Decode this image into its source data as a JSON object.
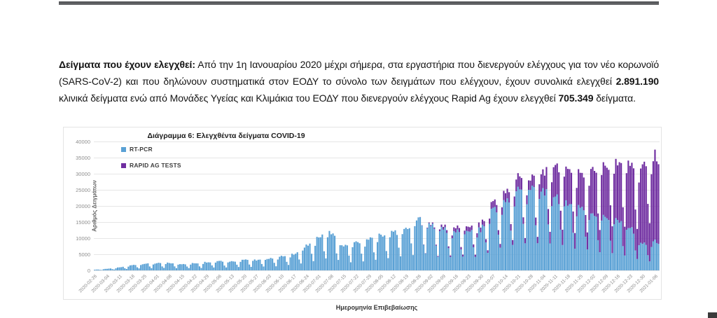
{
  "paragraph": {
    "s1": "Δείγματα που έχουν ελεγχθεί:",
    "s2": " Από την 1η Ιανουαρίου 2020 μέχρι σήμερα, στα εργαστήρια που διενεργούν ελέγχους για τον νέο κορωνοϊό (SARS-CoV-2) και που δηλώνουν συστηματικά στον ΕΟΔΥ το σύνολο των δειγμάτων που ελέγχουν, έχουν συνολικά ελεγχθεί ",
    "s3": "2.891.190",
    "s4": " κλινικά δείγματα ενώ από Μονάδες Υγείας και Κλιμάκια του ΕΟΔΥ που διενεργούν ελέγχους Rapid Ag έχουν ελεγχθεί ",
    "s5": "705.349",
    "s6": " δείγματα."
  },
  "chart_data": {
    "type": "bar",
    "stacked": true,
    "title": "Διάγραμμα 6: Ελεγχθέντα δείγματα COVID-19",
    "xlabel": "Ημερομηνία Επιβεβαίωσης",
    "ylabel": "Αριθμός Δειγμάτων",
    "ylim": [
      0,
      40000
    ],
    "ytick_step": 5000,
    "grid": "horizontal",
    "legend_position": "top-left-inside",
    "bar_resolution": "daily bars with weekend dips; values below are weekly estimates at each tick label",
    "categories": [
      "2020-02-26",
      "2020-03-04",
      "2020-03-11",
      "2020-03-18",
      "2020-03-25",
      "2020-04-01",
      "2020-04-08",
      "2020-04-15",
      "2020-04-22",
      "2020-04-29",
      "2020-05-06",
      "2020-05-13",
      "2020-05-20",
      "2020-05-27",
      "2020-06-03",
      "2020-06-10",
      "2020-06-17",
      "2020-06-24",
      "2020-07-01",
      "2020-07-08",
      "2020-07-15",
      "2020-07-22",
      "2020-07-29",
      "2020-08-05",
      "2020-08-12",
      "2020-08-19",
      "2020-08-26",
      "2020-09-02",
      "2020-09-09",
      "2020-09-16",
      "2020-09-23",
      "2020-09-30",
      "2020-10-07",
      "2020-10-14",
      "2020-10-21",
      "2020-10-28",
      "2020-11-04",
      "2020-11-11",
      "2020-11-18",
      "2020-11-25",
      "2020-12-02",
      "2020-12-09",
      "2020-12-16",
      "2020-12-23",
      "2020-12-30",
      "2021-01-06"
    ],
    "series": [
      {
        "name": "RT-PCR",
        "color": "#5aa1d5",
        "values": [
          200,
          500,
          900,
          1600,
          2100,
          2200,
          2300,
          2000,
          2200,
          2600,
          3000,
          2800,
          3500,
          3200,
          3800,
          4300,
          5200,
          7500,
          10500,
          12000,
          7500,
          8500,
          9500,
          11000,
          12000,
          13000,
          16000,
          14500,
          13000,
          12000,
          12500,
          12500,
          19500,
          21000,
          25500,
          25500,
          25000,
          23500,
          21500,
          20000,
          18000,
          17000,
          15500,
          13500,
          8000,
          9000
        ]
      },
      {
        "name": "RAPID AG TESTS",
        "color": "#6f2da0",
        "values": [
          0,
          0,
          0,
          0,
          0,
          0,
          0,
          0,
          0,
          0,
          0,
          0,
          0,
          0,
          0,
          0,
          0,
          0,
          0,
          0,
          0,
          0,
          0,
          0,
          0,
          0,
          0,
          300,
          800,
          1200,
          1500,
          1500,
          2200,
          2800,
          4000,
          3000,
          6000,
          9500,
          11000,
          10500,
          13500,
          16500,
          18000,
          20000,
          23500,
          27000
        ]
      }
    ]
  }
}
